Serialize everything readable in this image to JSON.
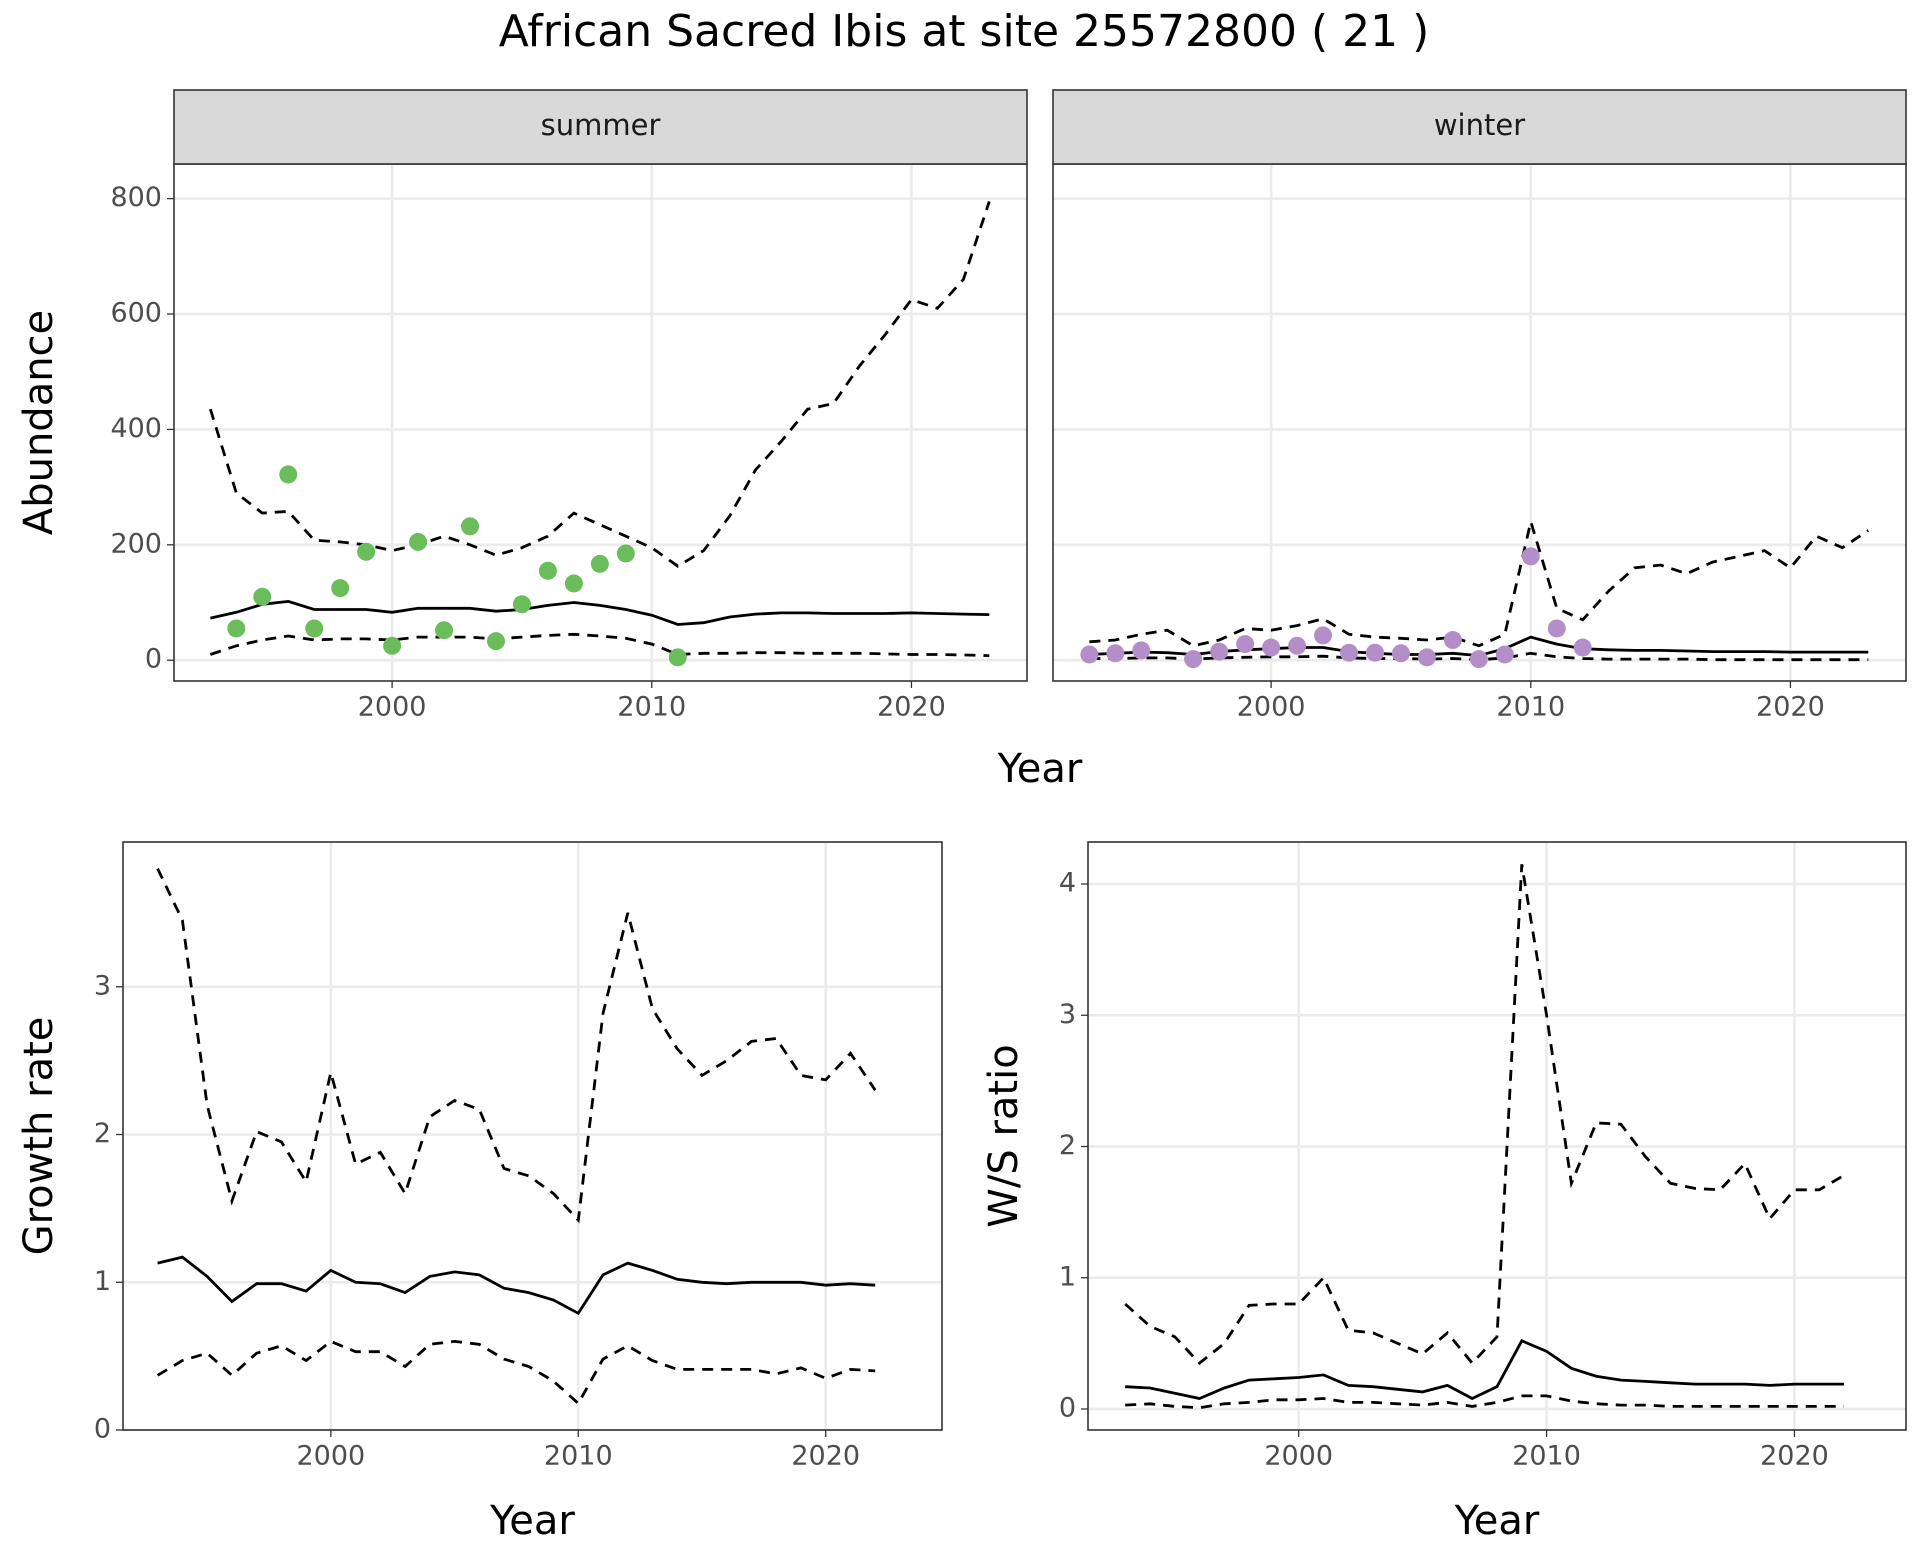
{
  "title": "African Sacred Ibis at site 25572800 ( 21 )",
  "xlabel": "Year",
  "chart_data": [
    {
      "type": "line",
      "strip": "summer",
      "ylabel": "Abundance",
      "x": [
        1993,
        1994,
        1995,
        1996,
        1997,
        1998,
        1999,
        2000,
        2001,
        2002,
        2003,
        2004,
        2005,
        2006,
        2007,
        2008,
        2009,
        2010,
        2011,
        2012,
        2013,
        2014,
        2015,
        2016,
        2017,
        2018,
        2019,
        2020,
        2021,
        2022,
        2023
      ],
      "xlim": [
        1991.6,
        2024.45
      ],
      "xticks": [
        2000,
        2010,
        2020
      ],
      "ylim": [
        -36,
        860
      ],
      "yticks": [
        0,
        200,
        400,
        600,
        800
      ],
      "ytick_labels": true,
      "grid": true,
      "series": [
        {
          "style": "solid",
          "color": "#000000",
          "values": [
            73,
            83,
            97,
            102,
            88,
            88,
            88,
            83,
            90,
            90,
            90,
            85,
            88,
            95,
            100,
            95,
            88,
            78,
            62,
            65,
            75,
            80,
            82,
            82,
            81,
            81,
            81,
            82,
            81,
            80,
            79
          ]
        },
        {
          "style": "dashed",
          "color": "#000000",
          "values": [
            435,
            290,
            255,
            258,
            208,
            205,
            200,
            190,
            200,
            215,
            200,
            182,
            195,
            215,
            255,
            235,
            215,
            195,
            163,
            190,
            250,
            330,
            380,
            435,
            445,
            510,
            565,
            625,
            610,
            660,
            795
          ]
        },
        {
          "style": "dashed",
          "color": "#000000",
          "values": [
            10,
            25,
            35,
            42,
            35,
            37,
            37,
            35,
            40,
            40,
            40,
            37,
            40,
            43,
            45,
            42,
            38,
            28,
            10,
            12,
            12,
            13,
            13,
            12,
            12,
            12,
            11,
            10,
            10,
            9,
            8
          ]
        },
        {
          "style": "points",
          "color": "#6abd5a",
          "x": [
            1994,
            1995,
            1996,
            1997,
            1998,
            1999,
            2000,
            2001,
            2002,
            2003,
            2004,
            2005,
            2006,
            2007,
            2008,
            2009,
            2011
          ],
          "values": [
            55,
            110,
            322,
            55,
            125,
            188,
            25,
            205,
            52,
            232,
            33,
            97,
            155,
            133,
            167,
            185,
            5
          ]
        }
      ]
    },
    {
      "type": "line",
      "strip": "winter",
      "x": [
        1993,
        1994,
        1995,
        1996,
        1997,
        1998,
        1999,
        2000,
        2001,
        2002,
        2003,
        2004,
        2005,
        2006,
        2007,
        2008,
        2009,
        2010,
        2011,
        2012,
        2013,
        2014,
        2015,
        2016,
        2017,
        2018,
        2019,
        2020,
        2021,
        2022,
        2023
      ],
      "xlim": [
        1991.6,
        2024.45
      ],
      "xticks": [
        2000,
        2010,
        2020
      ],
      "ylim": [
        -36,
        860
      ],
      "yticks": [
        0,
        200,
        400,
        600,
        800
      ],
      "ytick_labels": false,
      "grid": true,
      "series": [
        {
          "style": "solid",
          "color": "#000000",
          "values": [
            10,
            12,
            14,
            13,
            10,
            15,
            18,
            20,
            22,
            22,
            15,
            12,
            10,
            10,
            12,
            8,
            20,
            40,
            28,
            20,
            18,
            17,
            17,
            16,
            15,
            15,
            15,
            14,
            14,
            14,
            14
          ]
        },
        {
          "style": "dashed",
          "color": "#000000",
          "values": [
            32,
            35,
            45,
            52,
            25,
            35,
            55,
            52,
            60,
            72,
            45,
            40,
            38,
            35,
            40,
            25,
            45,
            240,
            90,
            70,
            120,
            160,
            165,
            150,
            170,
            180,
            190,
            160,
            215,
            195,
            225
          ]
        },
        {
          "style": "dashed",
          "color": "#000000",
          "values": [
            3,
            3,
            4,
            4,
            2,
            4,
            5,
            6,
            6,
            7,
            4,
            3,
            3,
            2,
            3,
            1,
            4,
            12,
            6,
            3,
            2,
            2,
            2,
            2,
            1,
            1,
            1,
            1,
            1,
            1,
            1
          ]
        },
        {
          "style": "points",
          "color": "#b48ec8",
          "x": [
            1993,
            1994,
            1995,
            1997,
            1998,
            1999,
            2000,
            2001,
            2002,
            2003,
            2004,
            2005,
            2006,
            2007,
            2008,
            2009,
            2010,
            2011,
            2012
          ],
          "values": [
            10,
            12,
            17,
            2,
            15,
            28,
            22,
            25,
            43,
            13,
            13,
            12,
            5,
            35,
            2,
            10,
            180,
            55,
            22
          ]
        }
      ]
    },
    {
      "type": "line",
      "ylabel": "Growth rate",
      "xlabel": "Year",
      "x": [
        1993,
        1994,
        1995,
        1996,
        1997,
        1998,
        1999,
        2000,
        2001,
        2002,
        2003,
        2004,
        2005,
        2006,
        2007,
        2008,
        2009,
        2010,
        2011,
        2012,
        2013,
        2014,
        2015,
        2016,
        2017,
        2018,
        2019,
        2020,
        2021,
        2022
      ],
      "xlim": [
        1991.6,
        2024.7
      ],
      "xticks": [
        2000,
        2010,
        2020
      ],
      "ylim": [
        0,
        3.98
      ],
      "yticks": [
        0,
        1,
        2,
        3
      ],
      "ytick_labels": true,
      "grid": true,
      "series": [
        {
          "style": "solid",
          "color": "#000000",
          "values": [
            1.13,
            1.17,
            1.04,
            0.87,
            0.99,
            0.99,
            0.94,
            1.08,
            1.0,
            0.99,
            0.93,
            1.04,
            1.07,
            1.05,
            0.96,
            0.93,
            0.88,
            0.79,
            1.05,
            1.13,
            1.08,
            1.02,
            1.0,
            0.99,
            1.0,
            1.0,
            1.0,
            0.98,
            0.99,
            0.98
          ]
        },
        {
          "style": "dashed",
          "color": "#000000",
          "values": [
            3.8,
            3.45,
            2.2,
            1.55,
            2.02,
            1.95,
            1.68,
            2.42,
            1.8,
            1.88,
            1.6,
            2.12,
            2.23,
            2.17,
            1.77,
            1.72,
            1.6,
            1.42,
            2.82,
            3.5,
            2.85,
            2.58,
            2.4,
            2.5,
            2.63,
            2.65,
            2.4,
            2.37,
            2.55,
            2.3
          ]
        },
        {
          "style": "dashed",
          "color": "#000000",
          "values": [
            0.37,
            0.47,
            0.52,
            0.37,
            0.52,
            0.57,
            0.47,
            0.6,
            0.53,
            0.53,
            0.43,
            0.58,
            0.6,
            0.58,
            0.48,
            0.43,
            0.33,
            0.18,
            0.48,
            0.57,
            0.47,
            0.41,
            0.41,
            0.41,
            0.41,
            0.38,
            0.42,
            0.35,
            0.41,
            0.4
          ]
        }
      ]
    },
    {
      "type": "line",
      "ylabel": "W/S ratio",
      "xlabel": "Year",
      "x": [
        1993,
        1994,
        1995,
        1996,
        1997,
        1998,
        1999,
        2000,
        2001,
        2002,
        2003,
        2004,
        2005,
        2006,
        2007,
        2008,
        2009,
        2010,
        2011,
        2012,
        2013,
        2014,
        2015,
        2016,
        2017,
        2018,
        2019,
        2020,
        2021,
        2022
      ],
      "xlim": [
        1991.5,
        2024.5
      ],
      "xticks": [
        2000,
        2010,
        2020
      ],
      "ylim": [
        -0.16,
        4.32
      ],
      "yticks": [
        0,
        1,
        2,
        3,
        4
      ],
      "ytick_labels": true,
      "grid": true,
      "series": [
        {
          "style": "solid",
          "color": "#000000",
          "values": [
            0.17,
            0.16,
            0.12,
            0.08,
            0.16,
            0.22,
            0.23,
            0.24,
            0.26,
            0.18,
            0.17,
            0.15,
            0.13,
            0.18,
            0.08,
            0.17,
            0.52,
            0.44,
            0.31,
            0.25,
            0.22,
            0.21,
            0.2,
            0.19,
            0.19,
            0.19,
            0.18,
            0.19,
            0.19,
            0.19
          ]
        },
        {
          "style": "dashed",
          "color": "#000000",
          "values": [
            0.8,
            0.63,
            0.55,
            0.35,
            0.5,
            0.79,
            0.8,
            0.8,
            1.0,
            0.6,
            0.58,
            0.5,
            0.42,
            0.58,
            0.35,
            0.55,
            4.15,
            3.0,
            1.72,
            2.18,
            2.17,
            1.92,
            1.72,
            1.68,
            1.67,
            1.87,
            1.45,
            1.67,
            1.67,
            1.78
          ]
        },
        {
          "style": "dashed",
          "color": "#000000",
          "values": [
            0.03,
            0.04,
            0.02,
            0.01,
            0.04,
            0.05,
            0.07,
            0.07,
            0.08,
            0.05,
            0.05,
            0.04,
            0.03,
            0.05,
            0.02,
            0.05,
            0.1,
            0.1,
            0.06,
            0.04,
            0.03,
            0.03,
            0.02,
            0.02,
            0.02,
            0.02,
            0.02,
            0.02,
            0.02,
            0.02
          ]
        }
      ]
    }
  ]
}
